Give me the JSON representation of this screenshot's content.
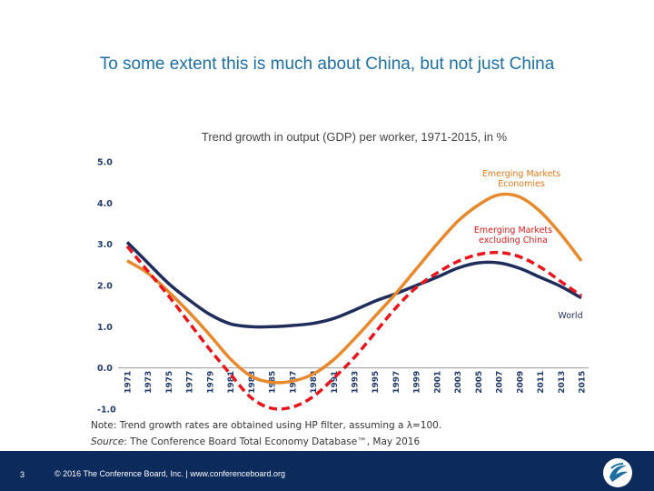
{
  "slide": {
    "title": "To some extent this is much about China, but not just China",
    "note_prefix": "Note: Trend growth rates are obtained using HP filter, assuming a ",
    "note_symbol": "λ",
    "note_suffix": "=100.",
    "source_label": "Source",
    "source_text": ": The Conference Board Total Economy Database™, May 2016",
    "page_number": "3",
    "footer": "© 2016 The Conference Board, Inc.  |  www.conferenceboard.org"
  },
  "chart_data": {
    "type": "line",
    "title": "Trend growth in output (GDP) per worker, 1971-2015, in %",
    "xlabel": "",
    "ylabel": "",
    "ylim": [
      -1.0,
      5.0
    ],
    "y_ticks": [
      "5.0",
      "4.0",
      "3.0",
      "2.0",
      "1.0",
      "0.0",
      "-1.0"
    ],
    "x_ticks": [
      "1971",
      "1973",
      "1975",
      "1977",
      "1979",
      "1981",
      "1983",
      "1985",
      "1987",
      "1989",
      "1991",
      "1993",
      "1995",
      "1997",
      "1999",
      "2001",
      "2003",
      "2005",
      "2007",
      "2009",
      "2011",
      "2013",
      "2015"
    ],
    "grid": false,
    "x": [
      1971,
      1973,
      1975,
      1977,
      1979,
      1981,
      1983,
      1985,
      1987,
      1989,
      1991,
      1993,
      1995,
      1997,
      1999,
      2001,
      2003,
      2005,
      2007,
      2009,
      2011,
      2013,
      2015
    ],
    "series": [
      {
        "name": "World",
        "label": "World",
        "color": "#1f2d5c",
        "dash": false,
        "values": [
          3.05,
          2.55,
          2.05,
          1.65,
          1.3,
          1.07,
          1.0,
          1.0,
          1.03,
          1.08,
          1.2,
          1.4,
          1.62,
          1.8,
          2.0,
          2.2,
          2.42,
          2.55,
          2.55,
          2.42,
          2.2,
          1.98,
          1.7
        ]
      },
      {
        "name": "Emerging Markets Economies",
        "label": "Emerging Markets Economies",
        "color": "#e8892e",
        "dash": false,
        "values": [
          2.6,
          2.3,
          1.85,
          1.35,
          0.8,
          0.22,
          -0.2,
          -0.35,
          -0.32,
          -0.15,
          0.2,
          0.7,
          1.25,
          1.8,
          2.4,
          3.0,
          3.55,
          3.95,
          4.2,
          4.15,
          3.8,
          3.25,
          2.6
        ]
      },
      {
        "name": "Emerging Markets excluding China",
        "label": "Emerging Markets excluding China",
        "color": "#e8161b",
        "dash": true,
        "values": [
          2.95,
          2.35,
          1.75,
          1.1,
          0.45,
          -0.15,
          -0.72,
          -0.98,
          -0.95,
          -0.7,
          -0.25,
          0.25,
          0.85,
          1.45,
          1.95,
          2.3,
          2.58,
          2.75,
          2.8,
          2.7,
          2.45,
          2.1,
          1.75
        ]
      }
    ]
  }
}
